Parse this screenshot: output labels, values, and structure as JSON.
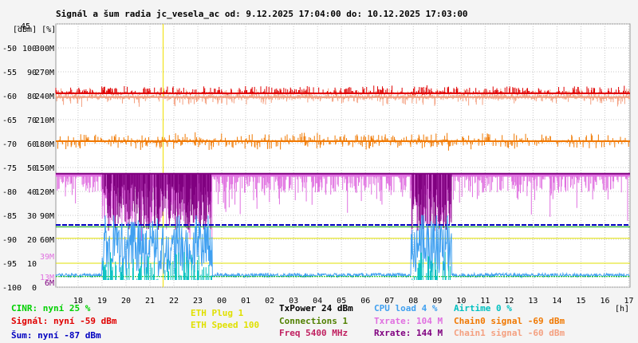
{
  "title": "Signál a šum radia jc_vesela_ac od: 9.12.2025 17:04:00 do: 10.12.2025 17:03:00",
  "axes": {
    "left_units_label": "[dBm] [%]",
    "dbm_ticks": [
      "-45",
      "-50",
      "-55",
      "-60",
      "-65",
      "-70",
      "-75",
      "-80",
      "-85",
      "-90",
      "-95",
      "-100"
    ],
    "pct_ticks": [
      "100",
      "90",
      "80",
      "70",
      "60",
      "50",
      "40",
      "30",
      "20",
      "10",
      "0"
    ],
    "rate_ticks": [
      "300M",
      "270M",
      "240M",
      "210M",
      "180M",
      "150M",
      "120M",
      "90M",
      "60M"
    ],
    "rate_extra": [
      {
        "label": "39M",
        "color": "#e070e0"
      },
      {
        "label": "13M",
        "color": "#e070e0"
      },
      {
        "label": "6M",
        "color": "#800080"
      }
    ],
    "x_ticks": [
      "18",
      "19",
      "20",
      "21",
      "22",
      "23",
      "00",
      "01",
      "02",
      "03",
      "04",
      "05",
      "06",
      "07",
      "08",
      "09",
      "10",
      "11",
      "12",
      "13",
      "14",
      "15",
      "16",
      "17"
    ],
    "x_unit": "[h]"
  },
  "chart_data": {
    "type": "line",
    "title": "Signál a šum radia jc_vesela_ac od: 9.12.2025 17:04:00 do: 10.12.2025 17:03:00",
    "xlabel": "[h]",
    "ylabel": "[dBm] [%]",
    "x_range": [
      17.07,
      41.05
    ],
    "ylim": [
      -100,
      -45
    ],
    "grid": true,
    "marker_x": 21.55,
    "series": [
      {
        "name": "Signál",
        "color": "#e00000",
        "x": [
          17.07,
          41.05
        ],
        "y": [
          -59.5,
          -59.5
        ]
      },
      {
        "name": "Chain1 signal",
        "color": "#f4a080",
        "x": [
          17.07,
          41.05
        ],
        "y": [
          -60.3,
          -60.3
        ]
      },
      {
        "name": "Chain0 signal",
        "color": "#f07800",
        "x": [
          17.07,
          41.05
        ],
        "y": [
          -69.5,
          -69.5
        ]
      },
      {
        "name": "Txrate",
        "color": "#e070e0",
        "x": [
          17.07,
          41.05
        ],
        "y": [
          -76.3,
          -76.3
        ]
      },
      {
        "name": "Rxrate",
        "color": "#800080",
        "x": [
          17.07,
          41.05
        ],
        "y": [
          -76.3,
          -76.3
        ]
      },
      {
        "name": "Šum",
        "color": "#0000c0",
        "x": [
          17.07,
          41.05
        ],
        "y": [
          -87.0,
          -87.0
        ]
      },
      {
        "name": "Connections",
        "color": "#00a000",
        "x": [
          17.07,
          41.05
        ],
        "y": [
          -87.4,
          -87.4
        ]
      },
      {
        "name": "CINR",
        "color": "#00c000",
        "x": [
          17.07,
          41.05
        ],
        "y": [
          -97.8,
          -97.8
        ]
      },
      {
        "name": "Airtime",
        "color": "#00c0c0",
        "x": [
          17.07,
          41.05
        ],
        "y": [
          -98.5,
          -98.5
        ]
      },
      {
        "name": "CPU load",
        "color": "#40a0f0",
        "x": [
          17.07,
          41.05
        ],
        "y": [
          -97.5,
          -97.5
        ]
      },
      {
        "name": "ETH Plug",
        "color": "#e0e000",
        "x": [
          17.07,
          41.05
        ],
        "y": [
          -89.8,
          -89.8
        ]
      },
      {
        "name": "ETH Speed",
        "color": "#e0e000",
        "x": [
          17.07,
          41.05
        ],
        "y": [
          -95.0,
          -95.0
        ]
      }
    ],
    "activity_windows": [
      [
        19.0,
        23.6
      ],
      [
        31.9,
        33.6
      ]
    ]
  },
  "legend": {
    "cinr": {
      "text": "CINR: nyní 25 %",
      "color": "#00d000"
    },
    "signal": {
      "text": "Signál: nyní -59 dBm",
      "color": "#e00000"
    },
    "noise": {
      "text": "Šum: nyní -87 dBm",
      "color": "#0000c0"
    },
    "eth_plug": {
      "text": "ETH Plug 1",
      "color": "#e0e000"
    },
    "eth_speed": {
      "text": "ETH Speed 100",
      "color": "#e0e000"
    },
    "txpower": {
      "text": "TxPower 24 dBm",
      "color": "#000000"
    },
    "connections": {
      "text": "Connections 1",
      "color": "#508000"
    },
    "freq": {
      "text": "Freq 5400 MHz",
      "color": "#c02060"
    },
    "cpu": {
      "text": "CPU load 4 %",
      "color": "#40a0f0"
    },
    "txrate": {
      "text": "Txrate: 104 M",
      "color": "#e070e0"
    },
    "rxrate": {
      "text": "Rxrate: 144 M",
      "color": "#800080"
    },
    "airtime": {
      "text": "Airtime 0 %",
      "color": "#00c0c0"
    },
    "chain0": {
      "text": "Chain0 signal -69 dBm",
      "color": "#f07800"
    },
    "chain1": {
      "text": "Chain1 signal -60 dBm",
      "color": "#f4a080"
    }
  }
}
